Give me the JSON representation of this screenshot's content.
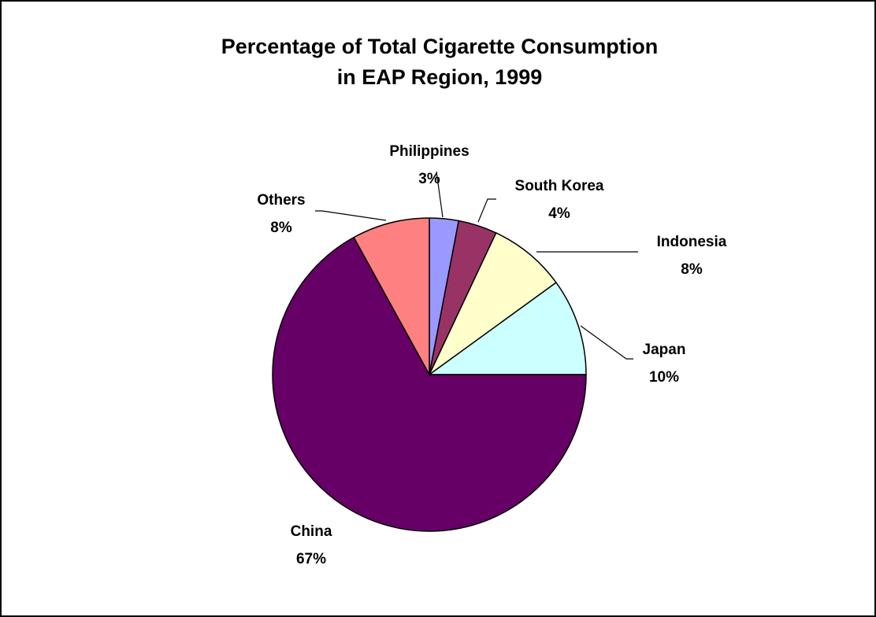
{
  "chart_data": {
    "type": "pie",
    "title": [
      "Percentage of Total Cigarette Consumption",
      "in EAP Region, 1999"
    ],
    "slices": [
      {
        "name": "Philippines",
        "value": 3,
        "label": "3%",
        "color": "#9999ff"
      },
      {
        "name": "South Korea",
        "value": 4,
        "label": "4%",
        "color": "#993366"
      },
      {
        "name": "Indonesia",
        "value": 8,
        "label": "8%",
        "color": "#ffffcc"
      },
      {
        "name": "Japan",
        "value": 10,
        "label": "10%",
        "color": "#ccffff"
      },
      {
        "name": "China",
        "value": 67,
        "label": "67%",
        "color": "#660066"
      },
      {
        "name": "Others",
        "value": 8,
        "label": "8%",
        "color": "#ff8080"
      }
    ],
    "start": "12 o'clock",
    "direction": "clockwise",
    "slice_border_color": "#000000",
    "legend": "none"
  }
}
